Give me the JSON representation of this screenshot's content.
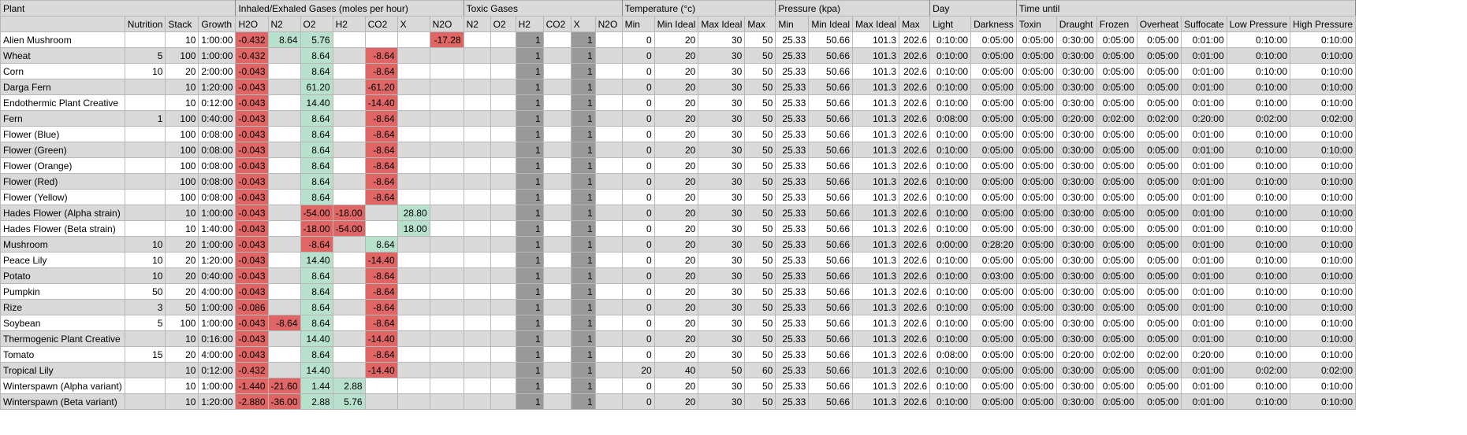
{
  "groups": [
    "Plant",
    "Inhaled/Exhaled Gases (moles per hour)",
    "Toxic Gases",
    "Temperature (°c)",
    "Pressure (kpa)",
    "Day",
    "Time until"
  ],
  "columns": [
    "",
    "Nutrition",
    "Stack",
    "Growth",
    "H2O",
    "N2",
    "O2",
    "H2",
    "CO2",
    "X",
    "N2O",
    "N2",
    "O2",
    "H2",
    "CO2",
    "X",
    "N2O",
    "Min",
    "Min Ideal",
    "Max Ideal",
    "Max",
    "Min",
    "Min Ideal",
    "Max Ideal",
    "Max",
    "Light",
    "Darkness",
    "Toxin",
    "Draught",
    "Frozen",
    "Overheat",
    "Suffocate",
    "Low Pressure",
    "High Pressure"
  ],
  "colors": {
    "header": "#d9d9d9",
    "alt_row": "#d9d9d9",
    "negative": "#e06666",
    "positive": "#b7e1cd",
    "toxic_flag": "#999999"
  },
  "rows": [
    {
      "name": "Alien Mushroom",
      "nut": "",
      "stack": "10",
      "growth": "1:00:00",
      "gases": [
        "-0.432",
        "8.64",
        "5.76",
        "",
        "",
        "",
        "-17.28"
      ],
      "toxic": [
        "",
        "",
        "1",
        "",
        "1",
        ""
      ],
      "temp": [
        "0",
        "20",
        "30",
        "50"
      ],
      "pres": [
        "25.33",
        "50.66",
        "101.3",
        "202.6"
      ],
      "day": [
        "0:10:00",
        "0:05:00"
      ],
      "until": [
        "0:05:00",
        "0:30:00",
        "0:05:00",
        "0:05:00",
        "0:01:00",
        "0:10:00",
        "0:10:00"
      ]
    },
    {
      "name": "Wheat",
      "nut": "5",
      "stack": "100",
      "growth": "1:00:00",
      "gases": [
        "-0.432",
        "",
        "8.64",
        "",
        "-8.64",
        "",
        ""
      ],
      "toxic": [
        "",
        "",
        "1",
        "",
        "1",
        ""
      ],
      "temp": [
        "0",
        "20",
        "30",
        "50"
      ],
      "pres": [
        "25.33",
        "50.66",
        "101.3",
        "202.6"
      ],
      "day": [
        "0:10:00",
        "0:05:00"
      ],
      "until": [
        "0:05:00",
        "0:30:00",
        "0:05:00",
        "0:05:00",
        "0:01:00",
        "0:10:00",
        "0:10:00"
      ]
    },
    {
      "name": "Corn",
      "nut": "10",
      "stack": "20",
      "growth": "2:00:00",
      "gases": [
        "-0.043",
        "",
        "8.64",
        "",
        "-8.64",
        "",
        ""
      ],
      "toxic": [
        "",
        "",
        "1",
        "",
        "1",
        ""
      ],
      "temp": [
        "0",
        "20",
        "30",
        "50"
      ],
      "pres": [
        "25.33",
        "50.66",
        "101.3",
        "202.6"
      ],
      "day": [
        "0:10:00",
        "0:05:00"
      ],
      "until": [
        "0:05:00",
        "0:30:00",
        "0:05:00",
        "0:05:00",
        "0:01:00",
        "0:10:00",
        "0:10:00"
      ]
    },
    {
      "name": "Darga Fern",
      "nut": "",
      "stack": "10",
      "growth": "1:20:00",
      "gases": [
        "-0.043",
        "",
        "61.20",
        "",
        "-61.20",
        "",
        ""
      ],
      "toxic": [
        "",
        "",
        "1",
        "",
        "1",
        ""
      ],
      "temp": [
        "0",
        "20",
        "30",
        "50"
      ],
      "pres": [
        "25.33",
        "50.66",
        "101.3",
        "202.6"
      ],
      "day": [
        "0:10:00",
        "0:05:00"
      ],
      "until": [
        "0:05:00",
        "0:30:00",
        "0:05:00",
        "0:05:00",
        "0:01:00",
        "0:10:00",
        "0:10:00"
      ]
    },
    {
      "name": "Endothermic Plant Creative",
      "nut": "",
      "stack": "10",
      "growth": "0:12:00",
      "gases": [
        "-0.043",
        "",
        "14.40",
        "",
        "-14.40",
        "",
        ""
      ],
      "toxic": [
        "",
        "",
        "1",
        "",
        "1",
        ""
      ],
      "temp": [
        "0",
        "20",
        "30",
        "50"
      ],
      "pres": [
        "25.33",
        "50.66",
        "101.3",
        "202.6"
      ],
      "day": [
        "0:10:00",
        "0:05:00"
      ],
      "until": [
        "0:05:00",
        "0:30:00",
        "0:05:00",
        "0:05:00",
        "0:01:00",
        "0:10:00",
        "0:10:00"
      ]
    },
    {
      "name": "Fern",
      "nut": "1",
      "stack": "100",
      "growth": "0:40:00",
      "gases": [
        "-0.043",
        "",
        "8.64",
        "",
        "-8.64",
        "",
        ""
      ],
      "toxic": [
        "",
        "",
        "1",
        "",
        "1",
        ""
      ],
      "temp": [
        "0",
        "20",
        "30",
        "50"
      ],
      "pres": [
        "25.33",
        "50.66",
        "101.3",
        "202.6"
      ],
      "day": [
        "0:08:00",
        "0:05:00"
      ],
      "until": [
        "0:05:00",
        "0:20:00",
        "0:02:00",
        "0:02:00",
        "0:20:00",
        "0:02:00",
        "0:02:00"
      ]
    },
    {
      "name": "Flower (Blue)",
      "nut": "",
      "stack": "100",
      "growth": "0:08:00",
      "gases": [
        "-0.043",
        "",
        "8.64",
        "",
        "-8.64",
        "",
        ""
      ],
      "toxic": [
        "",
        "",
        "1",
        "",
        "1",
        ""
      ],
      "temp": [
        "0",
        "20",
        "30",
        "50"
      ],
      "pres": [
        "25.33",
        "50.66",
        "101.3",
        "202.6"
      ],
      "day": [
        "0:10:00",
        "0:05:00"
      ],
      "until": [
        "0:05:00",
        "0:30:00",
        "0:05:00",
        "0:05:00",
        "0:01:00",
        "0:10:00",
        "0:10:00"
      ]
    },
    {
      "name": "Flower (Green)",
      "nut": "",
      "stack": "100",
      "growth": "0:08:00",
      "gases": [
        "-0.043",
        "",
        "8.64",
        "",
        "-8.64",
        "",
        ""
      ],
      "toxic": [
        "",
        "",
        "1",
        "",
        "1",
        ""
      ],
      "temp": [
        "0",
        "20",
        "30",
        "50"
      ],
      "pres": [
        "25.33",
        "50.66",
        "101.3",
        "202.6"
      ],
      "day": [
        "0:10:00",
        "0:05:00"
      ],
      "until": [
        "0:05:00",
        "0:30:00",
        "0:05:00",
        "0:05:00",
        "0:01:00",
        "0:10:00",
        "0:10:00"
      ]
    },
    {
      "name": "Flower (Orange)",
      "nut": "",
      "stack": "100",
      "growth": "0:08:00",
      "gases": [
        "-0.043",
        "",
        "8.64",
        "",
        "-8.64",
        "",
        ""
      ],
      "toxic": [
        "",
        "",
        "1",
        "",
        "1",
        ""
      ],
      "temp": [
        "0",
        "20",
        "30",
        "50"
      ],
      "pres": [
        "25.33",
        "50.66",
        "101.3",
        "202.6"
      ],
      "day": [
        "0:10:00",
        "0:05:00"
      ],
      "until": [
        "0:05:00",
        "0:30:00",
        "0:05:00",
        "0:05:00",
        "0:01:00",
        "0:10:00",
        "0:10:00"
      ]
    },
    {
      "name": "Flower (Red)",
      "nut": "",
      "stack": "100",
      "growth": "0:08:00",
      "gases": [
        "-0.043",
        "",
        "8.64",
        "",
        "-8.64",
        "",
        ""
      ],
      "toxic": [
        "",
        "",
        "1",
        "",
        "1",
        ""
      ],
      "temp": [
        "0",
        "20",
        "30",
        "50"
      ],
      "pres": [
        "25.33",
        "50.66",
        "101.3",
        "202.6"
      ],
      "day": [
        "0:10:00",
        "0:05:00"
      ],
      "until": [
        "0:05:00",
        "0:30:00",
        "0:05:00",
        "0:05:00",
        "0:01:00",
        "0:10:00",
        "0:10:00"
      ]
    },
    {
      "name": "Flower (Yellow)",
      "nut": "",
      "stack": "100",
      "growth": "0:08:00",
      "gases": [
        "-0.043",
        "",
        "8.64",
        "",
        "-8.64",
        "",
        ""
      ],
      "toxic": [
        "",
        "",
        "1",
        "",
        "1",
        ""
      ],
      "temp": [
        "0",
        "20",
        "30",
        "50"
      ],
      "pres": [
        "25.33",
        "50.66",
        "101.3",
        "202.6"
      ],
      "day": [
        "0:10:00",
        "0:05:00"
      ],
      "until": [
        "0:05:00",
        "0:30:00",
        "0:05:00",
        "0:05:00",
        "0:01:00",
        "0:10:00",
        "0:10:00"
      ]
    },
    {
      "name": "Hades Flower (Alpha strain)",
      "nut": "",
      "stack": "10",
      "growth": "1:00:00",
      "gases": [
        "-0.043",
        "",
        "-54.00",
        "-18.00",
        "",
        "28.80",
        ""
      ],
      "toxic": [
        "",
        "",
        "1",
        "",
        "1",
        ""
      ],
      "temp": [
        "0",
        "20",
        "30",
        "50"
      ],
      "pres": [
        "25.33",
        "50.66",
        "101.3",
        "202.6"
      ],
      "day": [
        "0:10:00",
        "0:05:00"
      ],
      "until": [
        "0:05:00",
        "0:30:00",
        "0:05:00",
        "0:05:00",
        "0:01:00",
        "0:10:00",
        "0:10:00"
      ]
    },
    {
      "name": "Hades Flower (Beta strain)",
      "nut": "",
      "stack": "10",
      "growth": "1:40:00",
      "gases": [
        "-0.043",
        "",
        "-18.00",
        "-54.00",
        "",
        "18.00",
        ""
      ],
      "toxic": [
        "",
        "",
        "1",
        "",
        "1",
        ""
      ],
      "temp": [
        "0",
        "20",
        "30",
        "50"
      ],
      "pres": [
        "25.33",
        "50.66",
        "101.3",
        "202.6"
      ],
      "day": [
        "0:10:00",
        "0:05:00"
      ],
      "until": [
        "0:05:00",
        "0:30:00",
        "0:05:00",
        "0:05:00",
        "0:01:00",
        "0:10:00",
        "0:10:00"
      ]
    },
    {
      "name": "Mushroom",
      "nut": "10",
      "stack": "20",
      "growth": "1:00:00",
      "gases": [
        "-0.043",
        "",
        "-8.64",
        "",
        "8.64",
        "",
        ""
      ],
      "toxic": [
        "",
        "",
        "1",
        "",
        "1",
        ""
      ],
      "temp": [
        "0",
        "20",
        "30",
        "50"
      ],
      "pres": [
        "25.33",
        "50.66",
        "101.3",
        "202.6"
      ],
      "day": [
        "0:00:00",
        "0:28:20"
      ],
      "until": [
        "0:05:00",
        "0:30:00",
        "0:05:00",
        "0:05:00",
        "0:01:00",
        "0:10:00",
        "0:10:00"
      ]
    },
    {
      "name": "Peace Lily",
      "nut": "10",
      "stack": "20",
      "growth": "1:20:00",
      "gases": [
        "-0.043",
        "",
        "14.40",
        "",
        "-14.40",
        "",
        ""
      ],
      "toxic": [
        "",
        "",
        "1",
        "",
        "1",
        ""
      ],
      "temp": [
        "0",
        "20",
        "30",
        "50"
      ],
      "pres": [
        "25.33",
        "50.66",
        "101.3",
        "202.6"
      ],
      "day": [
        "0:10:00",
        "0:05:00"
      ],
      "until": [
        "0:05:00",
        "0:30:00",
        "0:05:00",
        "0:05:00",
        "0:01:00",
        "0:10:00",
        "0:10:00"
      ]
    },
    {
      "name": "Potato",
      "nut": "10",
      "stack": "20",
      "growth": "0:40:00",
      "gases": [
        "-0.043",
        "",
        "8.64",
        "",
        "-8.64",
        "",
        ""
      ],
      "toxic": [
        "",
        "",
        "1",
        "",
        "1",
        ""
      ],
      "temp": [
        "0",
        "20",
        "30",
        "50"
      ],
      "pres": [
        "25.33",
        "50.66",
        "101.3",
        "202.6"
      ],
      "day": [
        "0:10:00",
        "0:03:00"
      ],
      "until": [
        "0:05:00",
        "0:30:00",
        "0:05:00",
        "0:05:00",
        "0:01:00",
        "0:10:00",
        "0:10:00"
      ]
    },
    {
      "name": "Pumpkin",
      "nut": "50",
      "stack": "20",
      "growth": "4:00:00",
      "gases": [
        "-0.043",
        "",
        "8.64",
        "",
        "-8.64",
        "",
        ""
      ],
      "toxic": [
        "",
        "",
        "1",
        "",
        "1",
        ""
      ],
      "temp": [
        "0",
        "20",
        "30",
        "50"
      ],
      "pres": [
        "25.33",
        "50.66",
        "101.3",
        "202.6"
      ],
      "day": [
        "0:10:00",
        "0:05:00"
      ],
      "until": [
        "0:05:00",
        "0:30:00",
        "0:05:00",
        "0:05:00",
        "0:01:00",
        "0:10:00",
        "0:10:00"
      ]
    },
    {
      "name": "Rize",
      "nut": "3",
      "stack": "50",
      "growth": "1:00:00",
      "gases": [
        "-0.086",
        "",
        "8.64",
        "",
        "-8.64",
        "",
        ""
      ],
      "toxic": [
        "",
        "",
        "1",
        "",
        "1",
        ""
      ],
      "temp": [
        "0",
        "20",
        "30",
        "50"
      ],
      "pres": [
        "25.33",
        "50.66",
        "101.3",
        "202.6"
      ],
      "day": [
        "0:10:00",
        "0:05:00"
      ],
      "until": [
        "0:05:00",
        "0:30:00",
        "0:05:00",
        "0:05:00",
        "0:01:00",
        "0:10:00",
        "0:10:00"
      ]
    },
    {
      "name": "Soybean",
      "nut": "5",
      "stack": "100",
      "growth": "1:00:00",
      "gases": [
        "-0.043",
        "-8.64",
        "8.64",
        "",
        "-8.64",
        "",
        ""
      ],
      "toxic": [
        "",
        "",
        "1",
        "",
        "1",
        ""
      ],
      "temp": [
        "0",
        "20",
        "30",
        "50"
      ],
      "pres": [
        "25.33",
        "50.66",
        "101.3",
        "202.6"
      ],
      "day": [
        "0:10:00",
        "0:05:00"
      ],
      "until": [
        "0:05:00",
        "0:30:00",
        "0:05:00",
        "0:05:00",
        "0:01:00",
        "0:10:00",
        "0:10:00"
      ]
    },
    {
      "name": "Thermogenic Plant Creative",
      "nut": "",
      "stack": "10",
      "growth": "0:16:00",
      "gases": [
        "-0.043",
        "",
        "14.40",
        "",
        "-14.40",
        "",
        ""
      ],
      "toxic": [
        "",
        "",
        "1",
        "",
        "1",
        ""
      ],
      "temp": [
        "0",
        "20",
        "30",
        "50"
      ],
      "pres": [
        "25.33",
        "50.66",
        "101.3",
        "202.6"
      ],
      "day": [
        "0:10:00",
        "0:05:00"
      ],
      "until": [
        "0:05:00",
        "0:30:00",
        "0:05:00",
        "0:05:00",
        "0:01:00",
        "0:10:00",
        "0:10:00"
      ]
    },
    {
      "name": "Tomato",
      "nut": "15",
      "stack": "20",
      "growth": "4:00:00",
      "gases": [
        "-0.043",
        "",
        "8.64",
        "",
        "-8.64",
        "",
        ""
      ],
      "toxic": [
        "",
        "",
        "1",
        "",
        "1",
        ""
      ],
      "temp": [
        "0",
        "20",
        "30",
        "50"
      ],
      "pres": [
        "25.33",
        "50.66",
        "101.3",
        "202.6"
      ],
      "day": [
        "0:08:00",
        "0:05:00"
      ],
      "until": [
        "0:05:00",
        "0:20:00",
        "0:02:00",
        "0:02:00",
        "0:20:00",
        "0:10:00",
        "0:10:00"
      ]
    },
    {
      "name": "Tropical Lily",
      "nut": "",
      "stack": "10",
      "growth": "0:12:00",
      "gases": [
        "-0.432",
        "",
        "14.40",
        "",
        "-14.40",
        "",
        ""
      ],
      "toxic": [
        "",
        "",
        "1",
        "",
        "1",
        ""
      ],
      "temp": [
        "20",
        "40",
        "50",
        "60"
      ],
      "pres": [
        "25.33",
        "50.66",
        "101.3",
        "202.6"
      ],
      "day": [
        "0:10:00",
        "0:05:00"
      ],
      "until": [
        "0:05:00",
        "0:30:00",
        "0:05:00",
        "0:05:00",
        "0:01:00",
        "0:02:00",
        "0:02:00"
      ]
    },
    {
      "name": "Winterspawn (Alpha variant)",
      "nut": "",
      "stack": "10",
      "growth": "1:00:00",
      "gases": [
        "-1.440",
        "-21.60",
        "1.44",
        "2.88",
        "",
        "",
        ""
      ],
      "toxic": [
        "",
        "",
        "1",
        "",
        "1",
        ""
      ],
      "temp": [
        "0",
        "20",
        "30",
        "50"
      ],
      "pres": [
        "25.33",
        "50.66",
        "101.3",
        "202.6"
      ],
      "day": [
        "0:10:00",
        "0:05:00"
      ],
      "until": [
        "0:05:00",
        "0:30:00",
        "0:05:00",
        "0:05:00",
        "0:01:00",
        "0:10:00",
        "0:10:00"
      ]
    },
    {
      "name": "Winterspawn (Beta variant)",
      "nut": "",
      "stack": "10",
      "growth": "1:20:00",
      "gases": [
        "-2.880",
        "-36.00",
        "2.88",
        "5.76",
        "",
        "",
        ""
      ],
      "toxic": [
        "",
        "",
        "1",
        "",
        "1",
        ""
      ],
      "temp": [
        "0",
        "20",
        "30",
        "50"
      ],
      "pres": [
        "25.33",
        "50.66",
        "101.3",
        "202.6"
      ],
      "day": [
        "0:10:00",
        "0:05:00"
      ],
      "until": [
        "0:05:00",
        "0:30:00",
        "0:05:00",
        "0:05:00",
        "0:01:00",
        "0:10:00",
        "0:10:00"
      ]
    }
  ]
}
